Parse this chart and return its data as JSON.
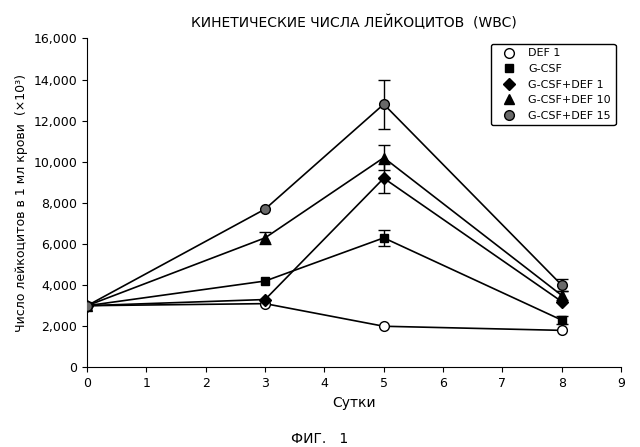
{
  "title": "КИНЕТИЧЕСКИЕ ЧИСЛА ЛЕЙКОЦИТОВ  (WBC)",
  "xlabel": "Сутки",
  "ylabel": "Число лейкоцитов в 1 мл крови  (×10³)",
  "caption": "ФИГ.   1",
  "x": [
    0,
    3,
    5,
    8
  ],
  "series": [
    {
      "label": "DEF 1",
      "y": [
        3000,
        3100,
        2000,
        1800
      ],
      "yerr": [
        0,
        0,
        0,
        0
      ],
      "marker": "o",
      "markerfacecolor": "white",
      "markersize": 7
    },
    {
      "label": "G-CSF",
      "y": [
        3000,
        4200,
        6300,
        2300
      ],
      "yerr": [
        0,
        0,
        400,
        200
      ],
      "marker": "s",
      "markerfacecolor": "black",
      "markersize": 6
    },
    {
      "label": "G-CSF+DEF 1",
      "y": [
        3000,
        3300,
        9200,
        3200
      ],
      "yerr": [
        0,
        0,
        700,
        0
      ],
      "marker": "D",
      "markerfacecolor": "black",
      "markersize": 6
    },
    {
      "label": "G-CSF+DEF 10",
      "y": [
        3000,
        6300,
        10200,
        3500
      ],
      "yerr": [
        0,
        300,
        600,
        200
      ],
      "marker": "^",
      "markerfacecolor": "black",
      "markersize": 7
    },
    {
      "label": "G-CSF+DEF 15",
      "y": [
        3000,
        7700,
        12800,
        4000
      ],
      "yerr": [
        0,
        0,
        1200,
        300
      ],
      "marker": "o",
      "markerfacecolor": "dimgray",
      "markersize": 7
    }
  ],
  "xlim": [
    0,
    9
  ],
  "ylim": [
    0,
    16000
  ],
  "xticks": [
    0,
    1,
    2,
    3,
    4,
    5,
    6,
    7,
    8,
    9
  ],
  "yticks": [
    0,
    2000,
    4000,
    6000,
    8000,
    10000,
    12000,
    14000,
    16000
  ]
}
